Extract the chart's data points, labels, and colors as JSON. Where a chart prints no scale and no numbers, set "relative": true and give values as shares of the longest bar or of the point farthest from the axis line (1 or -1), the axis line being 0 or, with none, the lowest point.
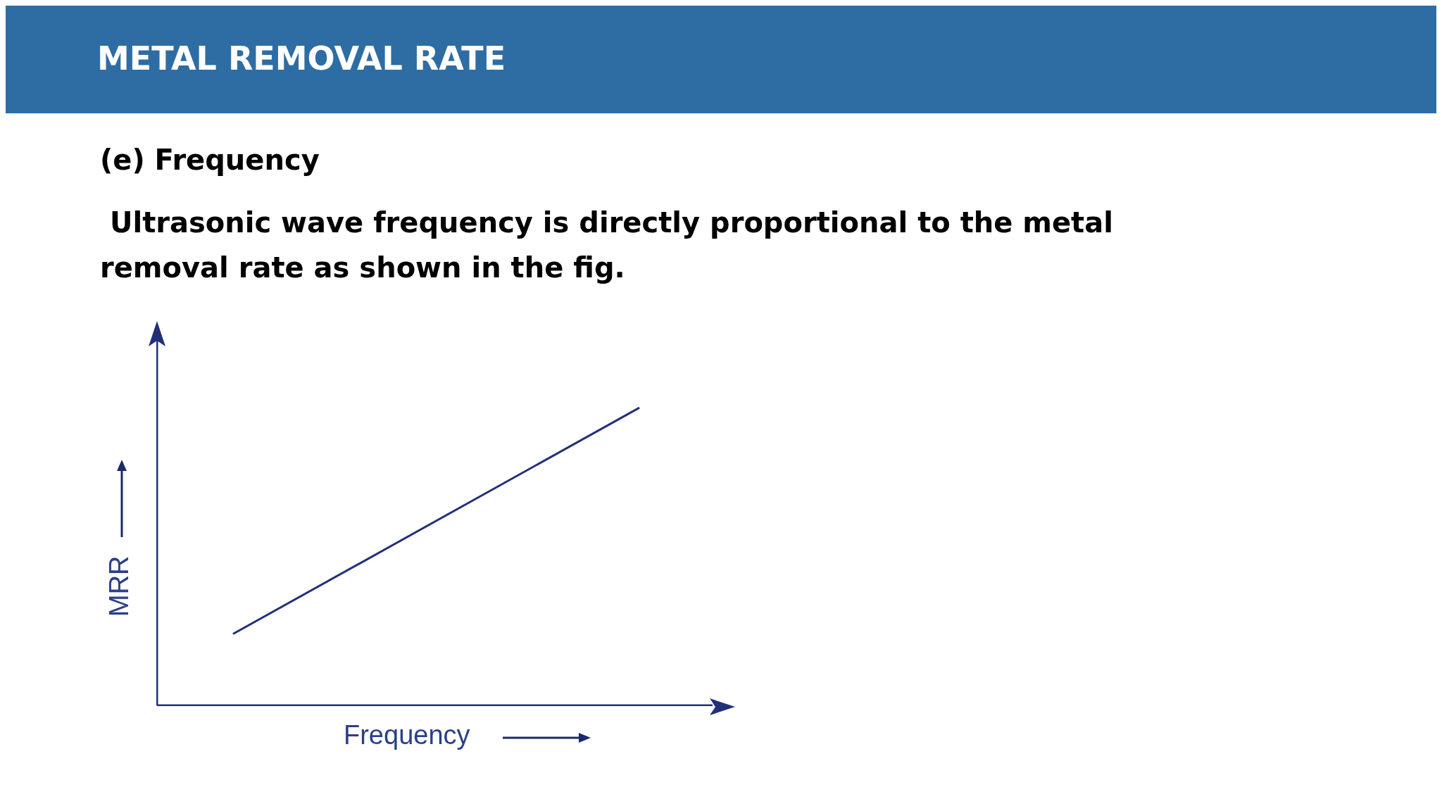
{
  "chart_data": {
    "type": "line",
    "title": "METAL REMOVAL RATE",
    "subtitle": "(e) Frequency",
    "annotations": [
      " Ultrasonic wave frequency is directly proportional to the metal removal rate as shown in the fig."
    ],
    "xlabel": "Frequency",
    "ylabel": "MRR",
    "relative": true,
    "categories": [
      null,
      null
    ],
    "series": [
      {
        "color": "#22307a",
        "values": [
          0.24,
          1
        ]
      }
    ],
    "marker": "none",
    "line_style": "solid"
  }
}
